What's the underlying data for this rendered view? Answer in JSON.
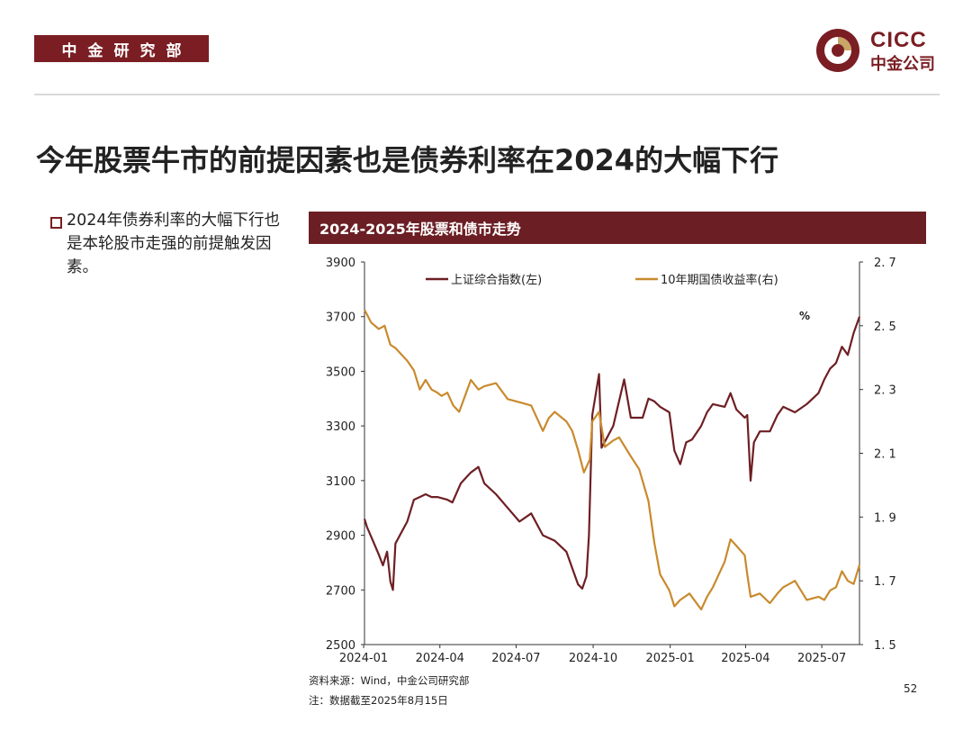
{
  "header": {
    "tag": "中金研究部",
    "logo_en": "CICC",
    "logo_cn": "中金公司"
  },
  "title": "今年股票牛市的前提因素也是债券利率在2024的大幅下行",
  "bullet": "2024年债券利率的大幅下行也是本轮股市走强的前提触发因素。",
  "chart_header": "2024-2025年股票和债市走势",
  "source": "资料来源：Wind，中金公司研究部",
  "note": "注：数据截至2025年8月15日",
  "page_number": "52",
  "colors": {
    "brand": "#7a1e23",
    "header_bar": "#6b1f24",
    "stock_line": "#6e1f24",
    "bond_line": "#c98a2e"
  },
  "chart_data": {
    "type": "line",
    "x_ticks": [
      "2024-01",
      "2024-04",
      "2024-07",
      "2024-10",
      "2025-01",
      "2025-04",
      "2025-07"
    ],
    "y_left": {
      "range": [
        2500,
        3900
      ],
      "ticks": [
        "2500",
        "2700",
        "2900",
        "3100",
        "3300",
        "3500",
        "3700",
        "3900"
      ]
    },
    "y_right": {
      "range": [
        1.5,
        2.7
      ],
      "ticks": [
        "1.5",
        "1.7",
        "1.9",
        "2.1",
        "2.3",
        "2.5",
        "2.7"
      ],
      "unit": "%"
    },
    "x_range": [
      "2024-01-02",
      "2025-08-15"
    ],
    "legend": "top",
    "series": [
      {
        "name": "上证综合指数(左)",
        "axis": "left",
        "points": [
          [
            "2024-01-02",
            2960
          ],
          [
            "2024-01-05",
            2930
          ],
          [
            "2024-01-12",
            2880
          ],
          [
            "2024-01-19",
            2830
          ],
          [
            "2024-01-24",
            2790
          ],
          [
            "2024-01-29",
            2840
          ],
          [
            "2024-02-02",
            2730
          ],
          [
            "2024-02-05",
            2700
          ],
          [
            "2024-02-08",
            2870
          ],
          [
            "2024-02-22",
            2950
          ],
          [
            "2024-03-01",
            3030
          ],
          [
            "2024-03-08",
            3040
          ],
          [
            "2024-03-15",
            3050
          ],
          [
            "2024-03-22",
            3040
          ],
          [
            "2024-03-29",
            3040
          ],
          [
            "2024-04-10",
            3030
          ],
          [
            "2024-04-16",
            3020
          ],
          [
            "2024-04-26",
            3090
          ],
          [
            "2024-05-08",
            3130
          ],
          [
            "2024-05-17",
            3150
          ],
          [
            "2024-05-24",
            3090
          ],
          [
            "2024-06-07",
            3050
          ],
          [
            "2024-06-21",
            3000
          ],
          [
            "2024-07-05",
            2950
          ],
          [
            "2024-07-19",
            2980
          ],
          [
            "2024-08-02",
            2900
          ],
          [
            "2024-08-16",
            2880
          ],
          [
            "2024-08-30",
            2840
          ],
          [
            "2024-09-13",
            2720
          ],
          [
            "2024-09-18",
            2705
          ],
          [
            "2024-09-23",
            2750
          ],
          [
            "2024-09-26",
            2900
          ],
          [
            "2024-09-30",
            3340
          ],
          [
            "2024-10-08",
            3490
          ],
          [
            "2024-10-11",
            3220
          ],
          [
            "2024-10-18",
            3260
          ],
          [
            "2024-10-25",
            3300
          ],
          [
            "2024-11-07",
            3470
          ],
          [
            "2024-11-15",
            3330
          ],
          [
            "2024-11-29",
            3330
          ],
          [
            "2024-12-06",
            3400
          ],
          [
            "2024-12-13",
            3390
          ],
          [
            "2024-12-20",
            3370
          ],
          [
            "2024-12-31",
            3350
          ],
          [
            "2025-01-06",
            3210
          ],
          [
            "2025-01-13",
            3160
          ],
          [
            "2025-01-20",
            3240
          ],
          [
            "2025-01-27",
            3250
          ],
          [
            "2025-02-07",
            3300
          ],
          [
            "2025-02-14",
            3350
          ],
          [
            "2025-02-21",
            3380
          ],
          [
            "2025-03-07",
            3370
          ],
          [
            "2025-03-14",
            3420
          ],
          [
            "2025-03-21",
            3360
          ],
          [
            "2025-03-31",
            3330
          ],
          [
            "2025-04-03",
            3340
          ],
          [
            "2025-04-07",
            3100
          ],
          [
            "2025-04-11",
            3240
          ],
          [
            "2025-04-18",
            3280
          ],
          [
            "2025-04-30",
            3280
          ],
          [
            "2025-05-09",
            3340
          ],
          [
            "2025-05-16",
            3370
          ],
          [
            "2025-05-30",
            3350
          ],
          [
            "2025-06-13",
            3380
          ],
          [
            "2025-06-27",
            3420
          ],
          [
            "2025-07-04",
            3470
          ],
          [
            "2025-07-11",
            3510
          ],
          [
            "2025-07-18",
            3530
          ],
          [
            "2025-07-25",
            3590
          ],
          [
            "2025-08-01",
            3560
          ],
          [
            "2025-08-08",
            3640
          ],
          [
            "2025-08-15",
            3700
          ]
        ]
      },
      {
        "name": "10年期国债收益率(右)",
        "axis": "right",
        "points": [
          [
            "2024-01-02",
            2.55
          ],
          [
            "2024-01-10",
            2.51
          ],
          [
            "2024-01-19",
            2.49
          ],
          [
            "2024-01-26",
            2.5
          ],
          [
            "2024-02-02",
            2.44
          ],
          [
            "2024-02-08",
            2.43
          ],
          [
            "2024-02-22",
            2.39
          ],
          [
            "2024-03-01",
            2.36
          ],
          [
            "2024-03-08",
            2.3
          ],
          [
            "2024-03-15",
            2.33
          ],
          [
            "2024-03-22",
            2.3
          ],
          [
            "2024-03-29",
            2.29
          ],
          [
            "2024-04-03",
            2.28
          ],
          [
            "2024-04-10",
            2.29
          ],
          [
            "2024-04-17",
            2.25
          ],
          [
            "2024-04-24",
            2.23
          ],
          [
            "2024-05-08",
            2.33
          ],
          [
            "2024-05-17",
            2.3
          ],
          [
            "2024-05-24",
            2.31
          ],
          [
            "2024-06-07",
            2.32
          ],
          [
            "2024-06-21",
            2.27
          ],
          [
            "2024-07-05",
            2.26
          ],
          [
            "2024-07-19",
            2.25
          ],
          [
            "2024-08-02",
            2.17
          ],
          [
            "2024-08-09",
            2.21
          ],
          [
            "2024-08-16",
            2.23
          ],
          [
            "2024-08-30",
            2.2
          ],
          [
            "2024-09-06",
            2.17
          ],
          [
            "2024-09-13",
            2.11
          ],
          [
            "2024-09-20",
            2.04
          ],
          [
            "2024-09-27",
            2.08
          ],
          [
            "2024-09-30",
            2.2
          ],
          [
            "2024-10-08",
            2.23
          ],
          [
            "2024-10-15",
            2.12
          ],
          [
            "2024-10-25",
            2.14
          ],
          [
            "2024-11-01",
            2.15
          ],
          [
            "2024-11-15",
            2.09
          ],
          [
            "2024-11-25",
            2.05
          ],
          [
            "2024-12-06",
            1.95
          ],
          [
            "2024-12-13",
            1.82
          ],
          [
            "2024-12-20",
            1.72
          ],
          [
            "2024-12-31",
            1.67
          ],
          [
            "2025-01-06",
            1.62
          ],
          [
            "2025-01-13",
            1.64
          ],
          [
            "2025-01-24",
            1.66
          ],
          [
            "2025-02-07",
            1.61
          ],
          [
            "2025-02-14",
            1.65
          ],
          [
            "2025-02-21",
            1.68
          ],
          [
            "2025-03-07",
            1.76
          ],
          [
            "2025-03-14",
            1.83
          ],
          [
            "2025-03-21",
            1.81
          ],
          [
            "2025-03-31",
            1.78
          ],
          [
            "2025-04-03",
            1.72
          ],
          [
            "2025-04-07",
            1.65
          ],
          [
            "2025-04-18",
            1.66
          ],
          [
            "2025-04-30",
            1.63
          ],
          [
            "2025-05-09",
            1.66
          ],
          [
            "2025-05-16",
            1.68
          ],
          [
            "2025-05-30",
            1.7
          ],
          [
            "2025-06-13",
            1.64
          ],
          [
            "2025-06-27",
            1.65
          ],
          [
            "2025-07-04",
            1.64
          ],
          [
            "2025-07-11",
            1.67
          ],
          [
            "2025-07-18",
            1.68
          ],
          [
            "2025-07-25",
            1.73
          ],
          [
            "2025-08-01",
            1.7
          ],
          [
            "2025-08-08",
            1.69
          ],
          [
            "2025-08-15",
            1.75
          ]
        ]
      }
    ]
  }
}
